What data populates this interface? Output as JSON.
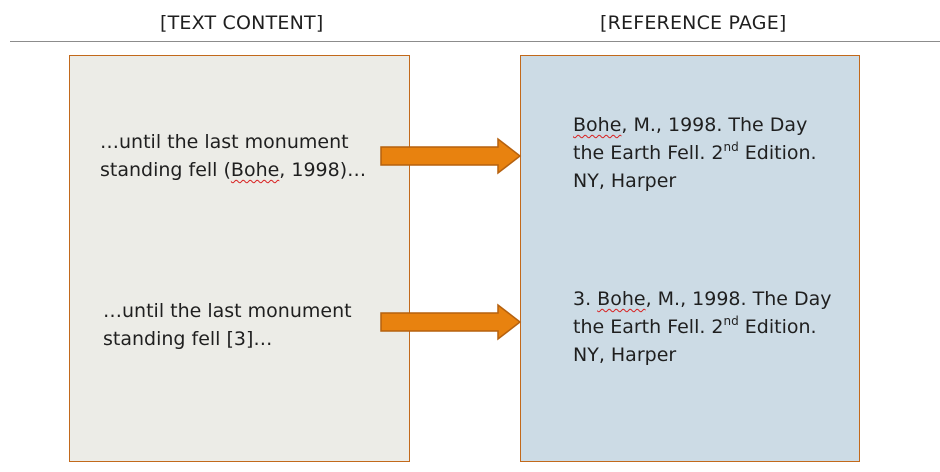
{
  "headings": {
    "left": "[TEXT CONTENT]",
    "right": "[REFERENCE PAGE]"
  },
  "colors": {
    "text_box_fill": "#ecece7",
    "reference_box_fill": "#ccdbe5",
    "box_border": "#c2691b",
    "arrow_fill": "#e8820f",
    "arrow_stroke": "#b5610f",
    "spellcheck_underline": "#d81e1e"
  },
  "citations": [
    {
      "line1": "…until the last monument",
      "line2_before": "standing fell (",
      "line2_author": "Bohe",
      "line2_after": ", 1998)…"
    },
    {
      "line1": "…until the last monument",
      "line2": "standing fell [3]…"
    }
  ],
  "references": [
    {
      "prefix": "",
      "author": "Bohe",
      "line1_rest": ", M., 1998. The Day",
      "line2_before": "the Earth Fell. 2",
      "line2_sup": "nd",
      "line2_after": " Edition.",
      "line3": "NY, Harper"
    },
    {
      "prefix": "3. ",
      "author": "Bohe",
      "line1_rest": ", M., 1998. The Day",
      "line2_before": "the Earth Fell. 2",
      "line2_sup": "nd",
      "line2_after": " Edition.",
      "line3": "NY, Harper"
    }
  ],
  "arrows": [
    {
      "icon": "right-arrow-icon"
    },
    {
      "icon": "right-arrow-icon"
    }
  ]
}
